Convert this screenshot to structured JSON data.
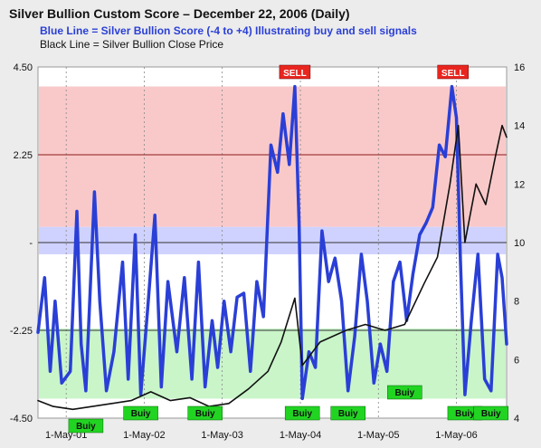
{
  "header": {
    "title": "Silver Bullion Custom Score – December 22, 2006 (Daily)",
    "subtitle_blue": "Blue Line = Silver Bullion Score (-4 to +4) Illustrating buy and sell signals",
    "subtitle_black": "Black Line = Silver Bullion Close Price"
  },
  "colors": {
    "score_line": "#2a3fd6",
    "price_line": "#111111",
    "sell_zone": "#f9c9c9",
    "neutral_zone": "#cfd2ff",
    "buy_zone": "#c9f5c9",
    "sell_badge": "#e8261f",
    "buy_badge": "#22d422"
  },
  "chart_data": {
    "type": "line",
    "title": "Silver Bullion Custom Score – December 22, 2006 (Daily)",
    "x_tick_labels": [
      "1-May-01",
      "1-May-02",
      "1-May-03",
      "1-May-04",
      "1-May-05",
      "1-May-06"
    ],
    "x_range": [
      "2000-12-20",
      "2006-12-22"
    ],
    "left_axis": {
      "ticks": [
        "4.50",
        "2.25",
        "-",
        "-2.25",
        "-4.50"
      ],
      "ylim": [
        -4.5,
        4.5
      ]
    },
    "right_axis": {
      "ticks": [
        "16",
        "14",
        "12",
        "10",
        "8",
        "6",
        "4"
      ],
      "ylim": [
        4,
        16
      ]
    },
    "zones": [
      {
        "name": "sell",
        "from": 0.4,
        "to": 4.0
      },
      {
        "name": "neutral",
        "from": -0.3,
        "to": 0.4
      },
      {
        "name": "buy",
        "from": -4.0,
        "to": -2.2
      }
    ],
    "series": [
      {
        "name": "Blue Line = Silver Bullion Score (-4 to +4) Illustrating buy and sell signals",
        "axis": "left",
        "points": [
          [
            "2000-12-20",
            -2.3
          ],
          [
            "2001-01-20",
            -0.9
          ],
          [
            "2001-02-15",
            -3.3
          ],
          [
            "2001-03-10",
            -1.5
          ],
          [
            "2001-04-10",
            -3.6
          ],
          [
            "2001-05-20",
            -3.3
          ],
          [
            "2001-06-20",
            0.8
          ],
          [
            "2001-07-10",
            -2.6
          ],
          [
            "2001-08-01",
            -3.8
          ],
          [
            "2001-09-10",
            1.3
          ],
          [
            "2001-10-05",
            -1.5
          ],
          [
            "2001-11-05",
            -3.8
          ],
          [
            "2001-12-10",
            -2.8
          ],
          [
            "2002-01-20",
            -0.5
          ],
          [
            "2002-02-15",
            -3.5
          ],
          [
            "2002-03-20",
            0.2
          ],
          [
            "2002-04-15",
            -3.9
          ],
          [
            "2002-05-20",
            -1.5
          ],
          [
            "2002-06-20",
            0.7
          ],
          [
            "2002-07-20",
            -3.7
          ],
          [
            "2002-08-20",
            -1.0
          ],
          [
            "2002-10-01",
            -2.8
          ],
          [
            "2002-11-05",
            -0.9
          ],
          [
            "2002-12-10",
            -3.5
          ],
          [
            "2003-01-10",
            -0.5
          ],
          [
            "2003-02-10",
            -3.7
          ],
          [
            "2003-03-15",
            -2.0
          ],
          [
            "2003-04-10",
            -3.2
          ],
          [
            "2003-05-10",
            -1.5
          ],
          [
            "2003-06-10",
            -2.8
          ],
          [
            "2003-07-10",
            -1.4
          ],
          [
            "2003-08-10",
            -1.3
          ],
          [
            "2003-09-10",
            -3.3
          ],
          [
            "2003-10-10",
            -1.0
          ],
          [
            "2003-11-10",
            -1.9
          ],
          [
            "2003-12-15",
            2.5
          ],
          [
            "2004-01-15",
            1.8
          ],
          [
            "2004-02-10",
            3.3
          ],
          [
            "2004-03-10",
            2.0
          ],
          [
            "2004-04-05",
            4.0
          ],
          [
            "2004-04-25",
            0.5
          ],
          [
            "2004-05-10",
            -4.0
          ],
          [
            "2004-06-10",
            -2.8
          ],
          [
            "2004-07-10",
            -3.2
          ],
          [
            "2004-08-10",
            0.3
          ],
          [
            "2004-09-10",
            -1.0
          ],
          [
            "2004-10-10",
            -0.4
          ],
          [
            "2004-11-10",
            -1.5
          ],
          [
            "2004-12-10",
            -3.8
          ],
          [
            "2005-01-10",
            -2.4
          ],
          [
            "2005-02-10",
            -0.3
          ],
          [
            "2005-03-10",
            -1.5
          ],
          [
            "2005-04-10",
            -3.6
          ],
          [
            "2005-05-10",
            -2.6
          ],
          [
            "2005-06-10",
            -3.3
          ],
          [
            "2005-07-10",
            -1.0
          ],
          [
            "2005-08-10",
            -0.5
          ],
          [
            "2005-09-10",
            -2.0
          ],
          [
            "2005-10-10",
            -0.8
          ],
          [
            "2005-11-10",
            0.2
          ],
          [
            "2005-12-10",
            0.5
          ],
          [
            "2006-01-10",
            0.9
          ],
          [
            "2006-02-10",
            2.5
          ],
          [
            "2006-03-10",
            2.2
          ],
          [
            "2006-04-10",
            4.0
          ],
          [
            "2006-05-01",
            3.2
          ],
          [
            "2006-05-20",
            -0.5
          ],
          [
            "2006-06-10",
            -3.9
          ],
          [
            "2006-07-10",
            -2.0
          ],
          [
            "2006-08-10",
            -0.3
          ],
          [
            "2006-09-10",
            -3.5
          ],
          [
            "2006-10-10",
            -3.8
          ],
          [
            "2006-11-10",
            -0.3
          ],
          [
            "2006-12-01",
            -0.9
          ],
          [
            "2006-12-22",
            -2.6
          ]
        ]
      },
      {
        "name": "Black Line = Silver Bullion Close Price",
        "axis": "right",
        "points": [
          [
            "2000-12-20",
            4.6
          ],
          [
            "2001-03-01",
            4.4
          ],
          [
            "2001-06-01",
            4.3
          ],
          [
            "2001-09-01",
            4.4
          ],
          [
            "2001-12-01",
            4.5
          ],
          [
            "2002-03-01",
            4.6
          ],
          [
            "2002-06-01",
            4.9
          ],
          [
            "2002-09-01",
            4.6
          ],
          [
            "2002-12-01",
            4.7
          ],
          [
            "2003-03-01",
            4.4
          ],
          [
            "2003-06-01",
            4.5
          ],
          [
            "2003-09-01",
            5.0
          ],
          [
            "2003-12-01",
            5.6
          ],
          [
            "2004-02-01",
            6.6
          ],
          [
            "2004-04-05",
            8.1
          ],
          [
            "2004-05-10",
            5.8
          ],
          [
            "2004-08-01",
            6.6
          ],
          [
            "2004-12-01",
            7.0
          ],
          [
            "2005-03-01",
            7.2
          ],
          [
            "2005-06-01",
            7.0
          ],
          [
            "2005-09-01",
            7.2
          ],
          [
            "2005-12-01",
            8.6
          ],
          [
            "2006-02-01",
            9.5
          ],
          [
            "2006-04-01",
            12.0
          ],
          [
            "2006-05-10",
            14.0
          ],
          [
            "2006-06-10",
            10.0
          ],
          [
            "2006-08-01",
            12.0
          ],
          [
            "2006-09-15",
            11.3
          ],
          [
            "2006-11-01",
            13.0
          ],
          [
            "2006-12-01",
            14.0
          ],
          [
            "2006-12-22",
            13.6
          ]
        ]
      }
    ],
    "signals": [
      {
        "type": "SELL",
        "date": "2004-04-05"
      },
      {
        "type": "SELL",
        "date": "2006-04-15"
      },
      {
        "type": "Buy",
        "date": "2001-08-01",
        "label": "Buiy"
      },
      {
        "type": "Buy",
        "date": "2002-04-15",
        "label": "Buiy"
      },
      {
        "type": "Buy",
        "date": "2003-02-10",
        "label": "Buiy"
      },
      {
        "type": "Buy",
        "date": "2004-05-10",
        "label": "Buiy"
      },
      {
        "type": "Buy",
        "date": "2004-12-10",
        "label": "Buiy"
      },
      {
        "type": "Buy",
        "date": "2005-09-01",
        "label": "Buiy"
      },
      {
        "type": "Buy",
        "date": "2006-06-10",
        "label": "Buiy"
      },
      {
        "type": "Buy",
        "date": "2006-10-10",
        "label": "Buiy"
      }
    ]
  }
}
